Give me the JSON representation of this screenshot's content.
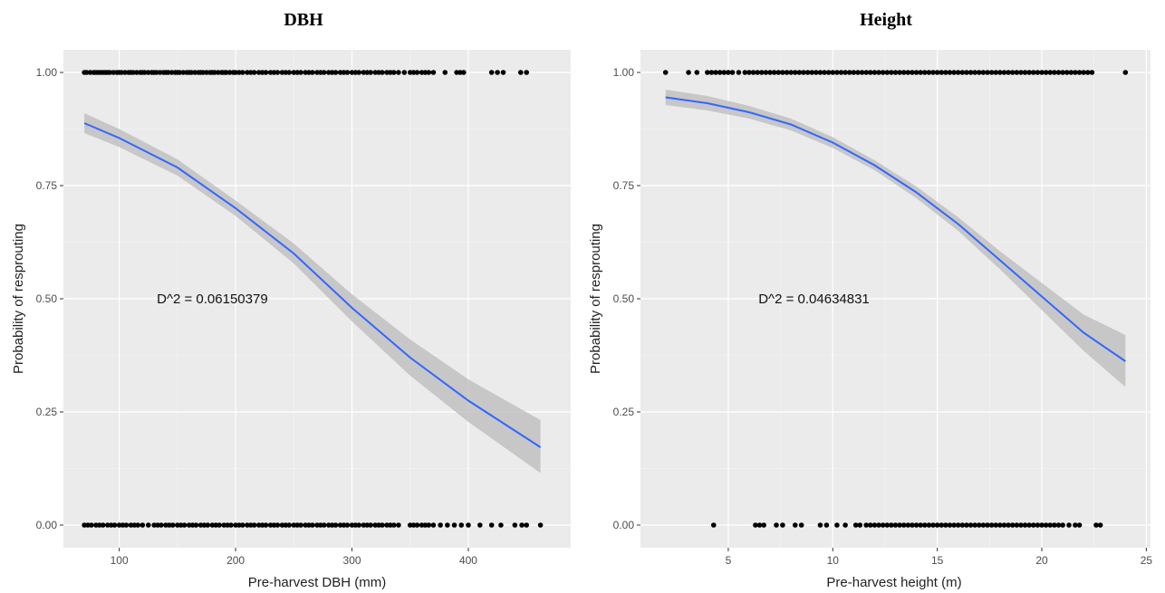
{
  "chart_data": [
    {
      "type": "scatter",
      "title": "DBH",
      "xlabel": "Pre-harvest DBH (mm)",
      "ylabel": "Probability of resprouting",
      "xlim": [
        52,
        488
      ],
      "ylim": [
        -0.05,
        1.05
      ],
      "x_ticks": [
        100,
        200,
        300,
        400
      ],
      "y_ticks": [
        0,
        0.25,
        0.5,
        0.75,
        1
      ],
      "y_tick_labels": [
        "0.00",
        "0.25",
        "0.50",
        "0.75",
        "1.00"
      ],
      "grid": true,
      "annotation": {
        "text": "D^2 = 0.06150379",
        "x": 180,
        "y": 0.5
      },
      "points_y1": [
        70,
        72,
        75,
        78,
        80,
        82,
        84,
        86,
        88,
        90,
        92,
        95,
        98,
        100,
        102,
        105,
        108,
        110,
        112,
        115,
        118,
        120,
        122,
        125,
        128,
        130,
        132,
        135,
        138,
        140,
        142,
        145,
        148,
        150,
        152,
        155,
        158,
        160,
        162,
        165,
        168,
        170,
        172,
        175,
        178,
        180,
        182,
        185,
        188,
        190,
        192,
        195,
        198,
        200,
        203,
        206,
        210,
        213,
        216,
        220,
        223,
        226,
        230,
        233,
        236,
        240,
        243,
        246,
        250,
        253,
        256,
        260,
        263,
        266,
        270,
        273,
        276,
        280,
        283,
        286,
        290,
        293,
        296,
        300,
        303,
        306,
        310,
        313,
        316,
        320,
        323,
        326,
        330,
        333,
        336,
        340,
        345,
        350,
        353,
        356,
        360,
        363,
        366,
        370,
        380,
        390,
        393,
        396,
        420,
        425,
        430,
        445,
        450
      ],
      "points_y0": [
        70,
        73,
        76,
        80,
        83,
        86,
        90,
        93,
        96,
        100,
        103,
        106,
        110,
        113,
        116,
        120,
        125,
        130,
        133,
        136,
        140,
        143,
        146,
        150,
        153,
        156,
        160,
        163,
        166,
        170,
        173,
        176,
        180,
        183,
        186,
        190,
        193,
        196,
        200,
        203,
        206,
        210,
        213,
        216,
        220,
        223,
        226,
        230,
        233,
        236,
        240,
        243,
        246,
        250,
        253,
        256,
        260,
        263,
        266,
        270,
        273,
        276,
        280,
        283,
        286,
        290,
        293,
        296,
        300,
        303,
        306,
        310,
        313,
        316,
        320,
        323,
        326,
        330,
        333,
        336,
        340,
        350,
        353,
        356,
        360,
        363,
        366,
        370,
        376,
        382,
        388,
        394,
        400,
        410,
        420,
        428,
        440,
        446,
        450,
        462
      ],
      "fit": {
        "name": "",
        "x": [
          70,
          100,
          150,
          200,
          250,
          300,
          350,
          400,
          462
        ],
        "y": [
          0.888,
          0.855,
          0.79,
          0.7,
          0.6,
          0.48,
          0.37,
          0.275,
          0.172
        ],
        "lower": [
          0.866,
          0.835,
          0.772,
          0.683,
          0.578,
          0.45,
          0.33,
          0.228,
          0.115
        ],
        "upper": [
          0.91,
          0.875,
          0.808,
          0.717,
          0.622,
          0.51,
          0.41,
          0.322,
          0.232
        ]
      }
    },
    {
      "type": "scatter",
      "title": "Height",
      "xlabel": "Pre-harvest height (m)",
      "ylabel": "Probability of resprouting",
      "xlim": [
        0.8,
        25.2
      ],
      "ylim": [
        -0.05,
        1.05
      ],
      "x_ticks": [
        5,
        10,
        15,
        20,
        25
      ],
      "y_ticks": [
        0,
        0.25,
        0.5,
        0.75,
        1
      ],
      "y_tick_labels": [
        "0.00",
        "0.25",
        "0.50",
        "0.75",
        "1.00"
      ],
      "grid": true,
      "annotation": {
        "text": "D^2 = 0.04634831",
        "x": 9.1,
        "y": 0.5
      },
      "points_y1": [
        2.0,
        3.1,
        3.5,
        4.0,
        4.2,
        4.4,
        4.6,
        4.8,
        5.0,
        5.2,
        5.5,
        5.8,
        6.0,
        6.2,
        6.4,
        6.6,
        6.8,
        7.0,
        7.2,
        7.4,
        7.6,
        7.8,
        8.0,
        8.2,
        8.4,
        8.6,
        8.8,
        9.0,
        9.2,
        9.4,
        9.6,
        9.8,
        10.0,
        10.2,
        10.4,
        10.6,
        10.8,
        11.0,
        11.2,
        11.4,
        11.6,
        11.8,
        12.0,
        12.2,
        12.4,
        12.6,
        12.8,
        13.0,
        13.2,
        13.4,
        13.6,
        13.8,
        14.0,
        14.2,
        14.4,
        14.6,
        14.8,
        15.0,
        15.2,
        15.4,
        15.6,
        15.8,
        16.0,
        16.2,
        16.4,
        16.6,
        16.8,
        17.0,
        17.2,
        17.4,
        17.6,
        17.8,
        18.0,
        18.2,
        18.4,
        18.6,
        18.8,
        19.0,
        19.2,
        19.4,
        19.6,
        19.8,
        20.0,
        20.2,
        20.4,
        20.6,
        20.8,
        21.0,
        21.2,
        21.4,
        21.6,
        21.8,
        22.0,
        22.2,
        22.4,
        24.0
      ],
      "points_y0": [
        4.3,
        6.3,
        6.5,
        6.7,
        7.3,
        7.6,
        8.2,
        8.5,
        9.4,
        9.7,
        10.2,
        10.6,
        11.1,
        11.3,
        11.6,
        11.8,
        12.0,
        12.2,
        12.4,
        12.6,
        12.8,
        13.0,
        13.2,
        13.4,
        13.6,
        13.8,
        14.0,
        14.2,
        14.4,
        14.6,
        14.8,
        15.0,
        15.2,
        15.4,
        15.6,
        15.8,
        16.0,
        16.2,
        16.4,
        16.6,
        16.8,
        17.0,
        17.2,
        17.4,
        17.6,
        17.8,
        18.0,
        18.2,
        18.4,
        18.6,
        18.8,
        19.0,
        19.2,
        19.4,
        19.6,
        19.8,
        20.0,
        20.2,
        20.4,
        20.6,
        20.8,
        21.0,
        21.3,
        21.6,
        21.8,
        22.6,
        22.8
      ],
      "fit": {
        "name": "",
        "x": [
          2,
          4,
          6,
          8,
          10,
          12,
          14,
          16,
          18,
          20,
          22,
          24
        ],
        "y": [
          0.945,
          0.932,
          0.912,
          0.885,
          0.845,
          0.795,
          0.735,
          0.665,
          0.585,
          0.505,
          0.425,
          0.362
        ],
        "lower": [
          0.928,
          0.916,
          0.898,
          0.872,
          0.833,
          0.784,
          0.722,
          0.65,
          0.565,
          0.475,
          0.385,
          0.305
        ],
        "upper": [
          0.962,
          0.948,
          0.926,
          0.898,
          0.857,
          0.806,
          0.748,
          0.68,
          0.605,
          0.535,
          0.465,
          0.42
        ]
      }
    }
  ]
}
